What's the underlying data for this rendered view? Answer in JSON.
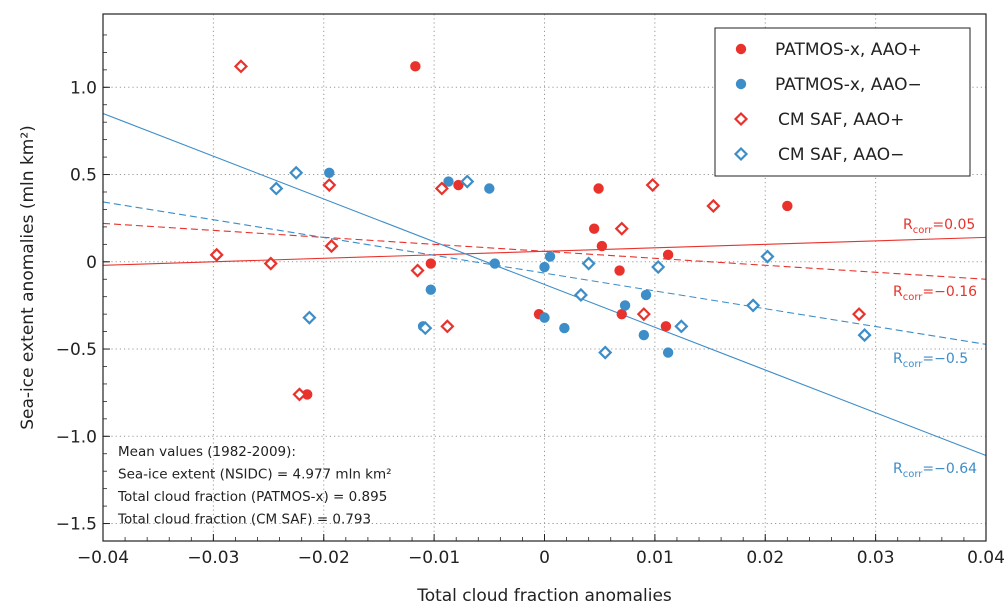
{
  "chart_data": {
    "type": "scatter",
    "xlabel": "Total cloud fraction anomalies",
    "ylabel": "Sea-ice extent anomalies (mln km²)",
    "xlim": [
      -0.04,
      0.04
    ],
    "ylim": [
      -1.6,
      1.42
    ],
    "xticks": [
      -0.04,
      -0.03,
      -0.02,
      -0.01,
      0,
      0.01,
      0.02,
      0.03,
      0.04
    ],
    "xtick_labels": [
      "−0.04",
      "−0.03",
      "−0.02",
      "−0.01",
      "0",
      "0.01",
      "0.02",
      "0.03",
      "0.04"
    ],
    "yticks": [
      -1.5,
      -1.0,
      -0.5,
      0,
      0.5,
      1.0
    ],
    "ytick_labels": [
      "−1.5",
      "−1.0",
      "−0.5",
      "0",
      "0.5",
      "1.0"
    ],
    "grid": true,
    "legend_position": "top-right",
    "colors": {
      "red": "#e8322b",
      "blue": "#3d8dc8"
    },
    "series": [
      {
        "name": "PATMOS-x, AAO+",
        "marker": "circle",
        "color": "#e8322b",
        "x": [
          -0.0117,
          -0.0078,
          -0.0103,
          0.0045,
          0.0049,
          0.0052,
          0.0068,
          0.0112,
          0.022,
          -0.0005,
          0.007,
          0.011,
          -0.0215
        ],
        "y": [
          1.12,
          0.44,
          -0.01,
          0.19,
          0.42,
          0.09,
          -0.05,
          0.04,
          0.32,
          -0.3,
          -0.3,
          -0.37,
          -0.76
        ]
      },
      {
        "name": "PATMOS-x, AAO−",
        "marker": "circle",
        "color": "#3d8dc8",
        "x": [
          -0.0195,
          -0.0087,
          -0.005,
          -0.0045,
          0.0005,
          0.0,
          -0.0103,
          -0.011,
          0.0,
          0.0018,
          0.0092,
          0.009,
          0.0073,
          0.0112
        ],
        "y": [
          0.51,
          0.46,
          0.42,
          -0.01,
          0.03,
          -0.03,
          -0.16,
          -0.37,
          -0.32,
          -0.38,
          -0.19,
          -0.42,
          -0.25,
          -0.52
        ]
      },
      {
        "name": "CM SAF, AAO+",
        "marker": "diamond",
        "color": "#e8322b",
        "x": [
          -0.0275,
          -0.0195,
          -0.0093,
          0.0098,
          0.0153,
          -0.0193,
          -0.0297,
          -0.0248,
          0.007,
          -0.0115,
          -0.0088,
          0.009,
          0.0285,
          -0.0222
        ],
        "y": [
          1.12,
          0.44,
          0.42,
          0.44,
          0.32,
          0.09,
          0.04,
          -0.01,
          0.19,
          -0.05,
          -0.37,
          -0.3,
          -0.3,
          -0.76
        ]
      },
      {
        "name": "CM SAF, AAO−",
        "marker": "diamond",
        "color": "#3d8dc8",
        "x": [
          -0.0225,
          -0.0243,
          -0.007,
          0.004,
          0.0103,
          0.0202,
          -0.0213,
          -0.0108,
          0.0033,
          0.0124,
          0.0055,
          0.0189,
          0.029
        ],
        "y": [
          0.51,
          0.42,
          0.46,
          -0.01,
          -0.03,
          0.03,
          -0.32,
          -0.38,
          -0.19,
          -0.37,
          -0.52,
          -0.25,
          -0.42
        ]
      }
    ],
    "regression_lines": [
      {
        "label_base": "R",
        "label_sub": "corr",
        "label_value": "=0.05",
        "color": "#e8322b",
        "dash": false,
        "slope": 2.0,
        "intercept": 0.06
      },
      {
        "label_base": "R",
        "label_sub": "corr",
        "label_value": "=−0.16",
        "color": "#e8322b",
        "dash": true,
        "slope": -4.0,
        "intercept": 0.06
      },
      {
        "label_base": "R",
        "label_sub": "corr",
        "label_value": "=−0.5",
        "color": "#3d8dc8",
        "dash": true,
        "slope": -10.2,
        "intercept": -0.065
      },
      {
        "label_base": "R",
        "label_sub": "corr",
        "label_value": "=−0.64",
        "color": "#3d8dc8",
        "dash": false,
        "slope": -24.5,
        "intercept": -0.13
      }
    ],
    "annotation": [
      "Mean values (1982-2009):",
      "Sea-ice extent (NSIDC) = 4.977 mln km²",
      "Total cloud fraction (PATMOS-x) = 0.895",
      "Total cloud fraction (CM SAF) = 0.793"
    ]
  }
}
